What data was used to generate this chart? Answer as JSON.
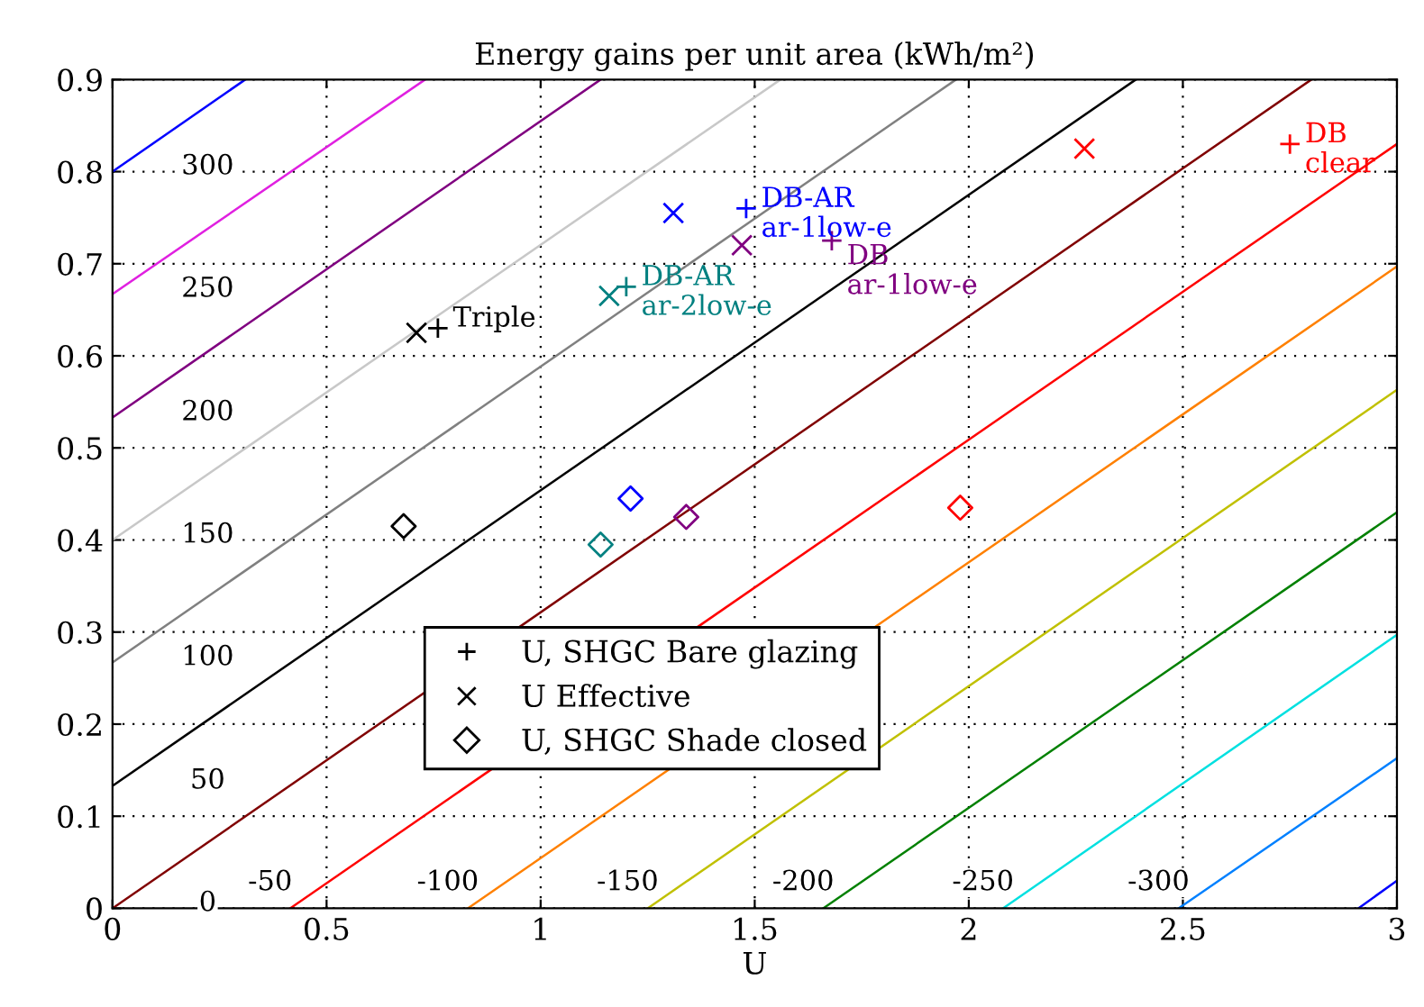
{
  "chart_data": {
    "type": "line",
    "title": "Energy gains per unit area (kWh/m²)",
    "xlabel": "U",
    "xlim": [
      0,
      3
    ],
    "ylim": [
      0,
      0.9
    ],
    "xticks": [
      0,
      0.5,
      1,
      1.5,
      2,
      2.5,
      3
    ],
    "yticks": [
      0,
      0.1,
      0.2,
      0.3,
      0.4,
      0.5,
      0.6,
      0.7,
      0.8,
      0.9
    ],
    "grid": true,
    "legend": "bottom",
    "series": [
      {
        "name": "300",
        "color": "#0000ff",
        "x": [
          0,
          0.31
        ],
        "values": [
          0.8,
          0.9
        ]
      },
      {
        "name": "250",
        "color": "#e020e0",
        "x": [
          0,
          0.73
        ],
        "values": [
          0.667,
          0.9
        ]
      },
      {
        "name": "200",
        "color": "#800080",
        "x": [
          0,
          1.14
        ],
        "values": [
          0.533,
          0.9
        ]
      },
      {
        "name": "150",
        "color": "#c8c8c8",
        "x": [
          0,
          1.56
        ],
        "values": [
          0.4,
          0.9
        ]
      },
      {
        "name": "100",
        "color": "#808080",
        "x": [
          0,
          1.97
        ],
        "values": [
          0.267,
          0.9
        ]
      },
      {
        "name": "50",
        "color": "#000000",
        "x": [
          0,
          2.39
        ],
        "values": [
          0.133,
          0.9
        ]
      },
      {
        "name": "0",
        "color": "#800000",
        "x": [
          0,
          2.8
        ],
        "values": [
          0,
          0.9
        ]
      },
      {
        "name": "-50",
        "color": "#ff0000",
        "x": [
          0.415,
          3
        ],
        "values": [
          0,
          0.83
        ]
      },
      {
        "name": "-100",
        "color": "#ff8000",
        "x": [
          0.83,
          3
        ],
        "values": [
          0,
          0.697
        ]
      },
      {
        "name": "-150",
        "color": "#c0c000",
        "x": [
          1.25,
          3
        ],
        "values": [
          0,
          0.563
        ]
      },
      {
        "name": "-200",
        "color": "#008000",
        "x": [
          1.66,
          3
        ],
        "values": [
          0,
          0.43
        ]
      },
      {
        "name": "-250",
        "color": "#00e0e0",
        "x": [
          2.08,
          3
        ],
        "values": [
          0,
          0.297
        ]
      },
      {
        "name": "-300",
        "color": "#0080ff",
        "x": [
          2.49,
          3
        ],
        "values": [
          0,
          0.163
        ]
      },
      {
        "color": "#0000ff",
        "x": [
          2.91,
          3
        ],
        "values": [
          0,
          0.03
        ]
      },
      {
        "name": "U, SHGC Bare glazing",
        "type": "scatter",
        "marker": "cross",
        "colors": [
          "#000000",
          "#008080",
          "#0000ff",
          "#800080",
          "#ff0000"
        ],
        "x": [
          0.76,
          1.2,
          1.48,
          1.68,
          2.75
        ],
        "values": [
          0.63,
          0.675,
          0.76,
          0.725,
          0.83
        ]
      },
      {
        "name": "U Effective",
        "type": "scatter",
        "marker": "x",
        "colors": [
          "#000000",
          "#008080",
          "#0000ff",
          "#800080",
          "#ff0000"
        ],
        "x": [
          0.71,
          1.16,
          1.31,
          1.47,
          2.27
        ],
        "values": [
          0.625,
          0.665,
          0.755,
          0.72,
          0.825
        ]
      },
      {
        "name": "U, SHGC Shade closed",
        "type": "scatter",
        "marker": "diamond",
        "colors": [
          "#000000",
          "#008080",
          "#0000ff",
          "#800080",
          "#ff0000"
        ],
        "x": [
          0.68,
          1.14,
          1.21,
          1.34,
          1.98
        ],
        "values": [
          0.415,
          0.395,
          0.445,
          0.425,
          0.435
        ]
      }
    ],
    "annotations": [
      {
        "text": "Triple",
        "x": 0.76,
        "y": 0.63
      },
      {
        "text": "DB-AR\nar-2low-e",
        "x": 1.2,
        "y": 0.675
      },
      {
        "text": "DB-AR\nar-1low-e",
        "x": 1.48,
        "y": 0.76
      },
      {
        "text": "DB\nar-1low-e",
        "x": 1.68,
        "y": 0.725
      },
      {
        "text": "DB\nclear",
        "x": 2.75,
        "y": 0.83
      }
    ]
  }
}
